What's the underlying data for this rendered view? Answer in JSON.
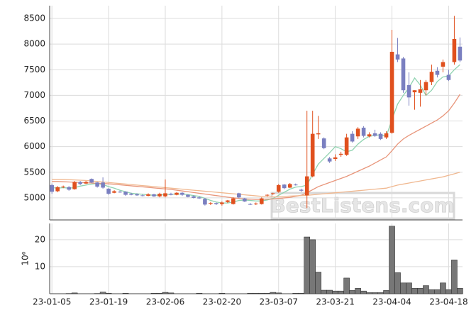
{
  "chart_data": [
    {
      "type": "candlestick",
      "up_color": "#e0501e",
      "down_color": "#7a7fc0",
      "ylim": [
        4570,
        8750
      ],
      "yticks": [
        5000,
        5500,
        6000,
        6500,
        7000,
        7500,
        8000,
        8500
      ],
      "grid": true,
      "xlim": [
        -0.4,
        72.45
      ],
      "open": [
        5250,
        5130,
        5210,
        5210,
        5170,
        5310,
        5280,
        5370,
        5300,
        5300,
        5180,
        5100,
        5120,
        5120,
        5080,
        5070,
        5050,
        5040,
        5070,
        5030,
        5030,
        5080,
        5060,
        5100,
        5060,
        5030,
        5010,
        4980,
        4890,
        4900,
        4880,
        4920,
        4880,
        5090,
        4990,
        4880,
        4880,
        4880,
        5050,
        5080,
        5120,
        5260,
        5200,
        5260,
        5160,
        5050,
        5420,
        6240,
        6160,
        5770,
        5760,
        5840,
        5840,
        6250,
        6200,
        6370,
        6200,
        6260,
        6250,
        6180,
        6270,
        7800,
        7720,
        7200,
        7060,
        7050,
        7100,
        7260,
        7480,
        7560,
        7400,
        7650,
        7950
      ],
      "high": [
        5280,
        5230,
        5240,
        5230,
        5330,
        5330,
        5330,
        5380,
        5310,
        5400,
        5190,
        5150,
        5140,
        5130,
        5100,
        5090,
        5070,
        5090,
        5080,
        5100,
        5360,
        5100,
        5110,
        5110,
        5070,
        5050,
        5030,
        5000,
        4920,
        4910,
        4930,
        4960,
        5010,
        5100,
        5000,
        4900,
        4910,
        5010,
        5070,
        5100,
        5270,
        5270,
        5290,
        5280,
        5180,
        6700,
        6700,
        6600,
        6180,
        5800,
        5850,
        5900,
        6250,
        6300,
        6380,
        6400,
        6280,
        6330,
        6280,
        6300,
        8280,
        8120,
        7750,
        7450,
        7100,
        7300,
        7300,
        7600,
        7550,
        7700,
        7500,
        8550,
        8130
      ],
      "low": [
        5080,
        5110,
        5190,
        5140,
        5160,
        5250,
        5270,
        5290,
        5200,
        5180,
        5060,
        5090,
        5100,
        5040,
        5050,
        5040,
        5030,
        5030,
        5020,
        5010,
        5010,
        5050,
        5050,
        5040,
        5010,
        4990,
        4980,
        4850,
        4860,
        4860,
        4850,
        4900,
        4870,
        4990,
        4920,
        4860,
        4860,
        4870,
        5030,
        5060,
        5100,
        5170,
        5190,
        5240,
        5120,
        4800,
        5400,
        6150,
        5950,
        5680,
        5720,
        5800,
        5820,
        6080,
        6150,
        6180,
        6180,
        6190,
        6130,
        6150,
        6250,
        7650,
        7050,
        6800,
        6720,
        6780,
        7000,
        7200,
        7350,
        7450,
        7280,
        7600,
        7650
      ],
      "close": [
        5120,
        5210,
        5220,
        5160,
        5310,
        5270,
        5310,
        5300,
        5220,
        5200,
        5080,
        5130,
        5110,
        5060,
        5060,
        5050,
        5040,
        5070,
        5030,
        5080,
        5090,
        5060,
        5100,
        5060,
        5020,
        5000,
        4990,
        4870,
        4900,
        4880,
        4910,
        4950,
        4990,
        5010,
        4930,
        4870,
        4890,
        4990,
        5060,
        5090,
        5250,
        5190,
        5270,
        5250,
        5140,
        5420,
        6250,
        6260,
        5970,
        5710,
        5790,
        5860,
        6180,
        6100,
        6350,
        6210,
        6240,
        6210,
        6150,
        6260,
        7850,
        7700,
        7100,
        6960,
        7100,
        7120,
        7260,
        7460,
        7400,
        7650,
        7300,
        8100,
        7680
      ],
      "series": [
        {
          "color": "#8fd3b0",
          "values": [
            5200,
            5190,
            5200,
            5190,
            5200,
            5230,
            5250,
            5270,
            5280,
            5260,
            5220,
            5190,
            5150,
            5120,
            5090,
            5080,
            5070,
            5060,
            5050,
            5055,
            5065,
            5070,
            5075,
            5075,
            5065,
            5045,
            5030,
            4990,
            4950,
            4920,
            4900,
            4900,
            4920,
            4950,
            4960,
            4950,
            4940,
            4940,
            4960,
            4990,
            5050,
            5110,
            5170,
            5210,
            5220,
            5250,
            5460,
            5660,
            5770,
            5880,
            6000,
            5960,
            5900,
            5930,
            6050,
            6140,
            6200,
            6220,
            6230,
            6200,
            6530,
            6830,
            7000,
            7150,
            7340,
            7200,
            7000,
            7100,
            7270,
            7360,
            7380,
            7500,
            7600
          ]
        },
        {
          "color": "#e8957a",
          "values": [
            5320,
            5320,
            5315,
            5310,
            5305,
            5300,
            5295,
            5290,
            5285,
            5280,
            5275,
            5265,
            5255,
            5245,
            5235,
            5225,
            5215,
            5205,
            5195,
            5185,
            5175,
            5165,
            5150,
            5135,
            5120,
            5105,
            5090,
            5075,
            5060,
            5045,
            5030,
            5015,
            5000,
            4990,
            4980,
            4975,
            4970,
            4970,
            4975,
            4980,
            4990,
            5000,
            5010,
            5030,
            5050,
            5100,
            5160,
            5220,
            5260,
            5300,
            5340,
            5380,
            5420,
            5470,
            5520,
            5570,
            5620,
            5680,
            5740,
            5800,
            5920,
            6050,
            6150,
            6220,
            6280,
            6340,
            6400,
            6460,
            6520,
            6600,
            6700,
            6850,
            7020
          ]
        },
        {
          "color": "#f0b890",
          "values": [
            5360,
            5360,
            5360,
            5355,
            5350,
            5345,
            5340,
            5330,
            5320,
            5310,
            5300,
            5290,
            5280,
            5270,
            5260,
            5250,
            5240,
            5230,
            5220,
            5210,
            5200,
            5190,
            5180,
            5170,
            5160,
            5150,
            5140,
            5130,
            5120,
            5110,
            5100,
            5090,
            5080,
            5070,
            5060,
            5050,
            5040,
            5030,
            5020,
            5020,
            5020,
            5030,
            5035,
            5040,
            5045,
            5050,
            5060,
            5070,
            5080,
            5090,
            5100,
            5110,
            5120,
            5130,
            5140,
            5150,
            5160,
            5170,
            5180,
            5190,
            5220,
            5250,
            5270,
            5290,
            5310,
            5330,
            5350,
            5370,
            5390,
            5410,
            5440,
            5470,
            5500
          ]
        }
      ],
      "watermark": "BestListens.com"
    },
    {
      "type": "bar",
      "color": "#777777",
      "ylabel": "10⁶",
      "ylim": [
        0,
        26
      ],
      "yticks": [
        10,
        20
      ],
      "grid": true,
      "xlim": [
        -0.4,
        72.45
      ],
      "categories": [
        "23-01-05",
        null,
        null,
        null,
        null,
        null,
        null,
        null,
        null,
        null,
        "23-01-19",
        null,
        null,
        null,
        null,
        null,
        null,
        null,
        null,
        null,
        "23-02-06",
        null,
        null,
        null,
        null,
        null,
        null,
        null,
        null,
        null,
        "23-02-20",
        null,
        null,
        null,
        null,
        null,
        null,
        null,
        null,
        null,
        "23-03-07",
        null,
        null,
        null,
        null,
        null,
        null,
        null,
        null,
        null,
        "23-03-21",
        null,
        null,
        null,
        null,
        null,
        null,
        null,
        null,
        null,
        "23-04-04",
        null,
        null,
        null,
        null,
        null,
        null,
        null,
        null,
        null,
        "23-04-18",
        null,
        null
      ],
      "values": [
        0,
        0,
        0,
        0.1,
        0.3,
        0,
        0,
        0,
        0.1,
        0.6,
        0.2,
        0,
        0,
        0.2,
        0,
        0,
        0,
        0,
        0.2,
        0.2,
        0.5,
        0.3,
        0,
        0,
        0,
        0,
        0.2,
        0,
        0,
        0,
        0.2,
        0,
        0,
        0,
        0,
        0.2,
        0.2,
        0.2,
        0.2,
        0.5,
        0.3,
        0,
        0,
        0.2,
        0.2,
        21,
        20,
        8,
        1.3,
        1.3,
        1,
        1,
        5.8,
        1.2,
        2,
        1,
        0.4,
        0.4,
        0.4,
        1.2,
        25,
        7.8,
        4,
        4,
        2,
        2,
        3,
        1.5,
        1.5,
        4,
        1.5,
        12.5,
        2
      ]
    }
  ]
}
